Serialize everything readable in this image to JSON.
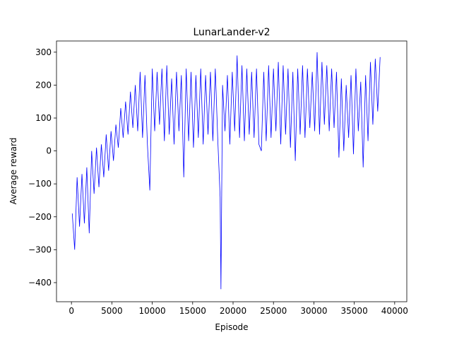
{
  "chart_data": {
    "type": "line",
    "title": "LunarLander-v2",
    "xlabel": "Episode",
    "ylabel": "Average reward",
    "color": "#0000ff",
    "x": [
      100,
      400,
      700,
      1000,
      1300,
      1600,
      1900,
      2200,
      2500,
      2800,
      3100,
      3400,
      3700,
      4000,
      4300,
      4600,
      4900,
      5200,
      5500,
      5800,
      6100,
      6400,
      6700,
      7000,
      7300,
      7600,
      7900,
      8200,
      8500,
      8800,
      9100,
      9400,
      9700,
      10000,
      10300,
      10600,
      10900,
      11200,
      11500,
      11800,
      12100,
      12400,
      12700,
      13000,
      13300,
      13600,
      13900,
      14200,
      14500,
      14800,
      15100,
      15400,
      15700,
      16000,
      16300,
      16600,
      16900,
      17200,
      17500,
      17800,
      18100,
      18400,
      18500,
      18700,
      19000,
      19300,
      19600,
      19900,
      20200,
      20500,
      20800,
      21100,
      21400,
      21700,
      22000,
      22300,
      22600,
      22900,
      23200,
      23500,
      23800,
      24100,
      24400,
      24700,
      25000,
      25300,
      25600,
      25900,
      26200,
      26500,
      26800,
      27100,
      27400,
      27700,
      28000,
      28300,
      28600,
      28900,
      29200,
      29500,
      29800,
      30100,
      30400,
      30700,
      31000,
      31300,
      31600,
      31900,
      32200,
      32500,
      32800,
      33100,
      33400,
      33700,
      34000,
      34300,
      34600,
      34900,
      35200,
      35500,
      35800,
      36100,
      36400,
      36700,
      37000,
      37300,
      37600,
      37900,
      38200
    ],
    "values": [
      -190,
      -300,
      -80,
      -230,
      -70,
      -220,
      -50,
      -250,
      0,
      -130,
      10,
      -110,
      20,
      -80,
      50,
      -60,
      60,
      -30,
      80,
      10,
      130,
      40,
      150,
      50,
      180,
      70,
      200,
      60,
      240,
      40,
      230,
      20,
      -120,
      250,
      60,
      240,
      80,
      250,
      30,
      260,
      50,
      220,
      20,
      240,
      60,
      230,
      -80,
      250,
      30,
      240,
      10,
      230,
      40,
      250,
      20,
      230,
      50,
      240,
      30,
      250,
      40,
      -140,
      -420,
      200,
      60,
      230,
      20,
      240,
      60,
      290,
      40,
      260,
      30,
      250,
      50,
      240,
      40,
      250,
      20,
      0,
      240,
      30,
      260,
      40,
      250,
      60,
      270,
      20,
      260,
      50,
      250,
      10,
      240,
      -30,
      250,
      50,
      260,
      40,
      250,
      70,
      240,
      60,
      300,
      50,
      270,
      80,
      260,
      60,
      250,
      70,
      240,
      -20,
      220,
      0,
      200,
      40,
      230,
      -10,
      250,
      60,
      210,
      -50,
      230,
      30,
      270,
      80,
      280,
      120,
      285
    ],
    "xlim": [
      -1850,
      41500
    ],
    "ylim": [
      -458,
      334
    ],
    "xticks": [
      0,
      5000,
      10000,
      15000,
      20000,
      25000,
      30000,
      35000,
      40000
    ],
    "yticks": [
      {
        "value": -400,
        "label": "−400"
      },
      {
        "value": -300,
        "label": "−300"
      },
      {
        "value": -200,
        "label": "−200"
      },
      {
        "value": -100,
        "label": "−100"
      },
      0,
      100,
      200,
      300
    ]
  }
}
